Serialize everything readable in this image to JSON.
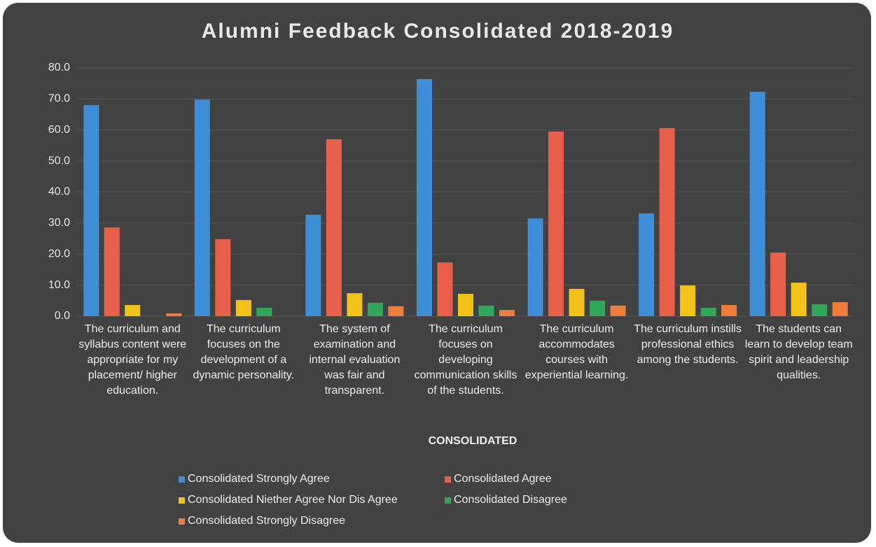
{
  "chart_data": {
    "type": "bar",
    "title": "Alumni Feedback Consolidated 2018-2019",
    "x_label": "CONSOLIDATED",
    "categories": [
      "The curriculum and syllabus content were appropriate for my placement/ higher education.",
      "The curriculum focuses on the development of a dynamic personality.",
      "The system of examination and internal evaluation was fair and transparent.",
      "The curriculum focuses on developing communication skills of the students.",
      "The curriculum accommodates courses with experiential learning.",
      "The curriculum instills professional ethics among the students.",
      "The students can learn to develop team spirit and leadership qualities."
    ],
    "series": [
      {
        "name": "Consolidated Strongly Agree",
        "color": "#3f8fd8",
        "values": [
          68.0,
          69.8,
          32.7,
          76.4,
          31.5,
          33.1,
          72.3
        ]
      },
      {
        "name": "Consolidated Agree",
        "color": "#e8604c",
        "values": [
          28.6,
          24.8,
          57.0,
          17.3,
          59.5,
          60.6,
          20.5
        ]
      },
      {
        "name": "Consolidated Niether Agree Nor Dis Agree",
        "color": "#f2c314",
        "values": [
          3.6,
          5.2,
          7.4,
          7.2,
          8.8,
          9.9,
          10.8
        ]
      },
      {
        "name": "Consolidated Disagree",
        "color": "#2fa85a",
        "values": [
          0,
          2.7,
          4.3,
          3.4,
          5.0,
          2.7,
          3.8
        ]
      },
      {
        "name": "Consolidated Strongly Disagree",
        "color": "#ef7d3a",
        "values": [
          0.9,
          0,
          3.2,
          2.0,
          3.4,
          3.6,
          4.5
        ]
      }
    ],
    "ylim": [
      0,
      80
    ],
    "yticks": [
      {
        "value": 0,
        "label": "0.0"
      },
      {
        "value": 10,
        "label": "10.0"
      },
      {
        "value": 20,
        "label": "20.0"
      },
      {
        "value": 30,
        "label": "30.0"
      },
      {
        "value": 40,
        "label": "40.0"
      },
      {
        "value": 50,
        "label": "50.0"
      },
      {
        "value": 60,
        "label": "60.0"
      },
      {
        "value": 70,
        "label": "70.0"
      },
      {
        "value": 80,
        "label": "80.0"
      }
    ],
    "grid": true
  }
}
